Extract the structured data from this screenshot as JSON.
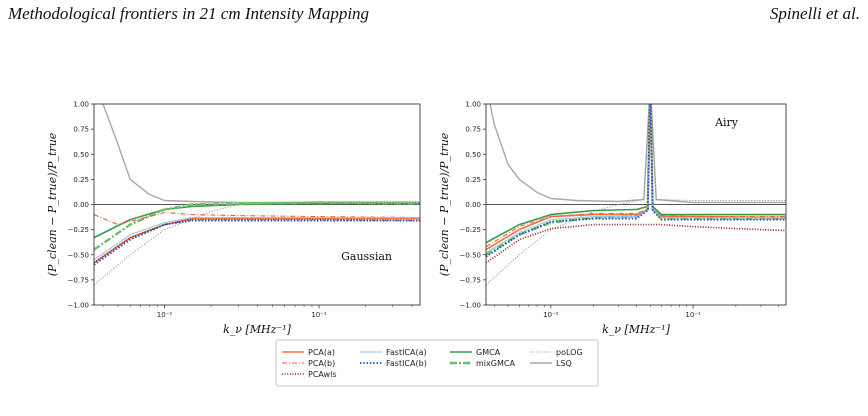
{
  "header": {
    "title": "Methodological frontiers in 21 cm Intensity Mapping",
    "authors": "Spinelli et al."
  },
  "colors": {
    "PCA(a)": "#f4743b",
    "PCA(b)": "#e8603c",
    "PCAwls": "#8b1a1a",
    "FastICA(a)": "#8fc4e8",
    "FastICA(b)": "#1f4fb4",
    "GMCA": "#3a9a4a",
    "mixGMCA": "#6cbf6c",
    "poLOG": "#999999",
    "LSQ": "#a8a8a8"
  },
  "legend": {
    "col1": [
      "PCA(a)",
      "PCA(b)",
      "PCAwls"
    ],
    "col2": [
      "FastICA(a)",
      "FastICA(b)"
    ],
    "col3": [
      "GMCA",
      "mixGMCA"
    ],
    "col4": [
      "poLOG",
      "LSQ"
    ]
  },
  "chart_data": [
    {
      "type": "line",
      "annotation": "Gaussian",
      "xlabel": "k_ν [MHz⁻¹]",
      "ylabel": "(P_clean − P_true)/P_true",
      "xscale": "log",
      "xlim": [
        0.0035,
        0.45
      ],
      "ylim": [
        -1.0,
        1.0
      ],
      "yticks": [
        "1.00",
        "0.75",
        "0.50",
        "0.25",
        "0.00",
        "−0.25",
        "−0.50",
        "−0.75",
        "−1.00"
      ],
      "xticks": [
        "10⁻²",
        "10⁻¹"
      ],
      "series": [
        {
          "name": "LSQ",
          "x": [
            0.0035,
            0.004,
            0.005,
            0.006,
            0.008,
            0.01,
            0.015,
            0.03,
            0.1,
            0.45
          ],
          "y": [
            1.2,
            1.0,
            0.6,
            0.25,
            0.1,
            0.04,
            0.03,
            0.02,
            0.02,
            0.02
          ]
        },
        {
          "name": "poLOG",
          "x": [
            0.0035,
            0.006,
            0.01,
            0.02,
            0.03,
            0.06,
            0.1,
            0.45
          ],
          "y": [
            -0.8,
            -0.5,
            -0.25,
            -0.07,
            0.0,
            0.02,
            0.03,
            0.03
          ]
        },
        {
          "name": "GMCA",
          "x": [
            0.0035,
            0.006,
            0.01,
            0.015,
            0.03,
            0.1,
            0.45
          ],
          "y": [
            -0.33,
            -0.15,
            -0.05,
            -0.02,
            0.0,
            0.01,
            0.01
          ]
        },
        {
          "name": "mixGMCA",
          "x": [
            0.0035,
            0.006,
            0.01,
            0.015,
            0.03,
            0.1,
            0.45
          ],
          "y": [
            -0.45,
            -0.2,
            -0.05,
            0.0,
            0.01,
            0.02,
            0.01
          ]
        },
        {
          "name": "PCA(a)",
          "x": [
            0.0035,
            0.006,
            0.01,
            0.015,
            0.03,
            0.1,
            0.45
          ],
          "y": [
            -0.58,
            -0.33,
            -0.2,
            -0.14,
            -0.14,
            -0.14,
            -0.14
          ]
        },
        {
          "name": "PCA(b)",
          "x": [
            0.0035,
            0.005,
            0.008,
            0.01,
            0.015,
            0.03,
            0.1,
            0.45
          ],
          "y": [
            -0.1,
            -0.2,
            -0.12,
            -0.08,
            -0.1,
            -0.11,
            -0.12,
            -0.13
          ]
        },
        {
          "name": "PCAwls",
          "x": [
            0.0035,
            0.006,
            0.01,
            0.015,
            0.03,
            0.1,
            0.45
          ],
          "y": [
            -0.58,
            -0.33,
            -0.2,
            -0.15,
            -0.15,
            -0.15,
            -0.16
          ]
        },
        {
          "name": "FastICA(a)",
          "x": [
            0.0035,
            0.006,
            0.01,
            0.015,
            0.03,
            0.1,
            0.45
          ],
          "y": [
            -0.55,
            -0.3,
            -0.18,
            -0.13,
            -0.13,
            -0.13,
            -0.13
          ]
        },
        {
          "name": "FastICA(b)",
          "x": [
            0.0035,
            0.006,
            0.01,
            0.015,
            0.03,
            0.1,
            0.45
          ],
          "y": [
            -0.6,
            -0.35,
            -0.2,
            -0.16,
            -0.16,
            -0.16,
            -0.16
          ]
        }
      ]
    },
    {
      "type": "line",
      "annotation": "Airy",
      "xlabel": "k_ν [MHz⁻¹]",
      "ylabel": "(P_clean − P_true)/P_true",
      "xscale": "log",
      "xlim": [
        0.0035,
        0.45
      ],
      "ylim": [
        -1.0,
        1.0
      ],
      "yticks": [
        "1.00",
        "0.75",
        "0.50",
        "0.25",
        "0.00",
        "−0.25",
        "−0.50",
        "−0.75",
        "−1.00"
      ],
      "xticks": [
        "10⁻²",
        "10⁻¹"
      ],
      "series": [
        {
          "name": "LSQ",
          "x": [
            0.0035,
            0.004,
            0.005,
            0.006,
            0.008,
            0.01,
            0.015,
            0.03,
            0.045,
            0.05,
            0.055,
            0.1,
            0.45
          ],
          "y": [
            1.2,
            0.8,
            0.4,
            0.25,
            0.12,
            0.06,
            0.04,
            0.03,
            0.05,
            1.2,
            0.05,
            0.02,
            0.02
          ]
        },
        {
          "name": "poLOG",
          "x": [
            0.0035,
            0.006,
            0.01,
            0.02,
            0.03,
            0.045,
            0.05,
            0.055,
            0.1,
            0.45
          ],
          "y": [
            -0.8,
            -0.5,
            -0.25,
            -0.07,
            0.0,
            0.05,
            1.2,
            0.05,
            0.04,
            0.04
          ]
        },
        {
          "name": "GMCA",
          "x": [
            0.0035,
            0.006,
            0.01,
            0.02,
            0.04,
            0.048,
            0.05,
            0.052,
            0.06,
            0.1,
            0.45
          ],
          "y": [
            -0.38,
            -0.2,
            -0.1,
            -0.06,
            -0.05,
            -0.02,
            1.2,
            -0.02,
            -0.1,
            -0.1,
            -0.1
          ]
        },
        {
          "name": "mixGMCA",
          "x": [
            0.0035,
            0.006,
            0.01,
            0.02,
            0.04,
            0.048,
            0.05,
            0.052,
            0.06,
            0.1,
            0.45
          ],
          "y": [
            -0.5,
            -0.3,
            -0.18,
            -0.13,
            -0.12,
            -0.05,
            1.2,
            -0.05,
            -0.14,
            -0.14,
            -0.14
          ]
        },
        {
          "name": "PCA(a)",
          "x": [
            0.0035,
            0.006,
            0.01,
            0.02,
            0.04,
            0.048,
            0.05,
            0.052,
            0.06,
            0.1,
            0.45
          ],
          "y": [
            -0.45,
            -0.25,
            -0.12,
            -0.1,
            -0.1,
            -0.05,
            1.2,
            -0.05,
            -0.12,
            -0.12,
            -0.13
          ]
        },
        {
          "name": "PCA(b)",
          "x": [
            0.0035,
            0.006,
            0.01,
            0.02,
            0.04,
            0.048,
            0.05,
            0.052,
            0.06,
            0.1,
            0.45
          ],
          "y": [
            -0.42,
            -0.22,
            -0.12,
            -0.09,
            -0.09,
            -0.05,
            1.2,
            -0.05,
            -0.11,
            -0.12,
            -0.12
          ]
        },
        {
          "name": "PCAwls",
          "x": [
            0.0035,
            0.006,
            0.01,
            0.02,
            0.04,
            0.06,
            0.1,
            0.2,
            0.45
          ],
          "y": [
            -0.58,
            -0.35,
            -0.24,
            -0.2,
            -0.2,
            -0.2,
            -0.22,
            -0.24,
            -0.26
          ]
        },
        {
          "name": "FastICA(a)",
          "x": [
            0.0035,
            0.006,
            0.01,
            0.02,
            0.04,
            0.048,
            0.05,
            0.052,
            0.06,
            0.1,
            0.45
          ],
          "y": [
            -0.48,
            -0.28,
            -0.15,
            -0.12,
            -0.12,
            -0.05,
            1.2,
            -0.05,
            -0.13,
            -0.13,
            -0.13
          ]
        },
        {
          "name": "FastICA(b)",
          "x": [
            0.0035,
            0.006,
            0.01,
            0.02,
            0.04,
            0.048,
            0.05,
            0.052,
            0.06,
            0.1,
            0.45
          ],
          "y": [
            -0.52,
            -0.3,
            -0.17,
            -0.14,
            -0.14,
            -0.06,
            1.2,
            -0.06,
            -0.15,
            -0.15,
            -0.15
          ]
        }
      ]
    }
  ]
}
